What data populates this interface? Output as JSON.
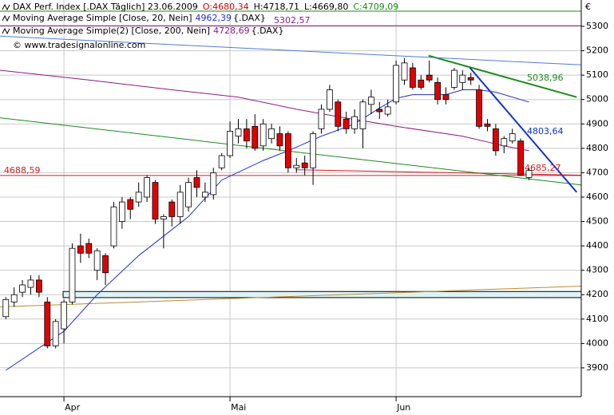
{
  "chart_data": {
    "type": "candlestick",
    "header": {
      "title": "DAX Perf. Index [.DAX  Täglich] 23.06.2009",
      "open_label": "O:4680,34",
      "high_label": "H:4718,71",
      "low_label": "L:4669,80",
      "close_label": "C:4709,09"
    },
    "currency": "€",
    "watermark": "© www.tradesignalonline.com",
    "categories": [
      null,
      null,
      null,
      null,
      null,
      null,
      null,
      "Apr",
      null,
      null,
      null,
      null,
      null,
      null,
      null,
      null,
      null,
      null,
      null,
      null,
      null,
      null,
      null,
      null,
      null,
      null,
      null,
      "Mai",
      null,
      null,
      null,
      null,
      null,
      null,
      null,
      null,
      null,
      null,
      null,
      null,
      null,
      null,
      null,
      null,
      null,
      null,
      null,
      "Jun",
      null,
      null,
      null,
      null,
      null,
      null,
      null,
      null,
      null,
      null,
      null,
      null,
      null,
      null,
      null,
      null
    ],
    "open": [
      4110,
      4170,
      4210,
      4230,
      4260,
      4170,
      3990,
      4060,
      4170,
      4400,
      4410,
      4300,
      4360,
      4400,
      4500,
      4590,
      4580,
      4600,
      4660,
      4510,
      4580,
      4520,
      4560,
      4680,
      4600,
      4610,
      4720,
      4770,
      4850,
      4880,
      4890,
      4810,
      4840,
      4860,
      4860,
      4720,
      4740,
      4720,
      4880,
      4960,
      4990,
      4920,
      4880,
      4880,
      4980,
      4960,
      4940,
      4990,
      5080,
      5130,
      5080,
      5100,
      5070,
      5020,
      5050,
      5070,
      5090,
      5040,
      4900,
      4880,
      4810,
      4830,
      4830,
      4680.34
    ],
    "high": [
      4190,
      4230,
      4260,
      4280,
      4280,
      4190,
      4100,
      4180,
      4410,
      4450,
      4430,
      4390,
      4370,
      4580,
      4600,
      4600,
      4660,
      4690,
      4670,
      4530,
      4590,
      4650,
      4680,
      4710,
      4660,
      4720,
      4780,
      4910,
      4920,
      4920,
      4940,
      4920,
      4900,
      4890,
      4870,
      4760,
      4770,
      4870,
      4980,
      5060,
      5000,
      4950,
      4960,
      5000,
      5040,
      4990,
      5000,
      5160,
      5170,
      5150,
      5100,
      5160,
      5090,
      5050,
      5130,
      5120,
      5110,
      5060,
      4920,
      4900,
      4850,
      4880,
      4840,
      4718.71
    ],
    "low": [
      4100,
      4150,
      4190,
      4200,
      4190,
      3980,
      3980,
      4000,
      4160,
      4330,
      4350,
      4260,
      4240,
      4390,
      4470,
      4510,
      4560,
      4580,
      4490,
      4390,
      4480,
      4490,
      4540,
      4600,
      4580,
      4590,
      4710,
      4760,
      4820,
      4800,
      4790,
      4790,
      4820,
      4790,
      4700,
      4700,
      4690,
      4650,
      4860,
      4950,
      4870,
      4860,
      4860,
      4800,
      4940,
      4920,
      4930,
      4980,
      5060,
      5040,
      5040,
      5070,
      4980,
      4980,
      5040,
      5040,
      5060,
      4880,
      4870,
      4770,
      4780,
      4820,
      4690,
      4669.8
    ],
    "close": [
      4180,
      4200,
      4240,
      4260,
      4210,
      3990,
      4090,
      4170,
      4390,
      4370,
      4370,
      4380,
      4290,
      4560,
      4580,
      4550,
      4620,
      4680,
      4510,
      4520,
      4520,
      4620,
      4660,
      4640,
      4620,
      4700,
      4770,
      4870,
      4880,
      4830,
      4800,
      4900,
      4880,
      4810,
      4720,
      4730,
      4720,
      4860,
      4960,
      5040,
      4890,
      4880,
      4930,
      4990,
      5010,
      4950,
      4970,
      5140,
      5150,
      5050,
      5050,
      5080,
      5000,
      5000,
      5120,
      5100,
      5080,
      4890,
      4890,
      4790,
      4840,
      4860,
      4690,
      4709.09
    ],
    "up_color": "#ffffff",
    "down_color": "#e00000",
    "series": [
      {
        "name": "Moving Average Simple [Close, 20, Nein]",
        "value_label": "4962,39",
        "symbol": "{.DAX}",
        "color": "#1f2fc8",
        "x": [
          0,
          7,
          11,
          16,
          22,
          26,
          31,
          34,
          38,
          42,
          45,
          47,
          49,
          53,
          55,
          57,
          59,
          61,
          63
        ],
        "values": [
          3890,
          4050,
          4200,
          4360,
          4520,
          4670,
          4750,
          4790,
          4850,
          4900,
          4965,
          5005,
          5020,
          5020,
          5040,
          5040,
          5030,
          5010,
          4990
        ]
      },
      {
        "name": "Moving Average Simple(2) [Close, 200, Nein]",
        "value_label": "4728,69",
        "symbol": "{.DAX}",
        "color": "#8b1a8b",
        "x": [
          -0.7,
          10,
          20,
          28,
          35,
          40,
          47,
          55,
          60,
          63
        ],
        "values": [
          5120,
          5080,
          5040,
          5010,
          4960,
          4930,
          4890,
          4850,
          4810,
          4790
        ]
      }
    ],
    "trendlines": [
      {
        "color": "#1a8a1a",
        "x": [
          -0.7,
          69.3
        ],
        "values": [
          4925,
          4650
        ]
      },
      {
        "color": "#1a8a1a",
        "x": [
          50.9,
          68.75
        ],
        "values": [
          5180,
          5010
        ],
        "label": "5038,96"
      },
      {
        "color": "#1030d0",
        "x": [
          55.9,
          68.75
        ],
        "values": [
          5130,
          4620
        ],
        "label": "4803,64"
      },
      {
        "color": "#d02020",
        "x": [
          34.9,
          69.3
        ],
        "values": [
          4712,
          4690
        ],
        "label": "4685,27"
      },
      {
        "color": "#c08a30",
        "x": [
          -0.7,
          69.3
        ],
        "values": [
          4150,
          4235
        ]
      },
      {
        "color": "#4f7bd8",
        "x": [
          -0.7,
          69.3
        ],
        "values": [
          5260,
          5142
        ]
      }
    ],
    "levels": [
      {
        "value": 5362,
        "color": "#1a8a1a"
      },
      {
        "value": 5302.57,
        "label": "5302,57",
        "color": "#8b1a8b"
      },
      {
        "value": 4688.59,
        "label": "4688,59",
        "color": "#d02020"
      }
    ],
    "zone": {
      "x": [
        6.9,
        69.3
      ],
      "values": [
        4188,
        4213
      ],
      "color": "#dff3f7"
    },
    "xlim": [
      -0.7,
      69.3
    ],
    "ylim": [
      3782,
      5408
    ],
    "yticks": [
      3900,
      4000,
      4100,
      4200,
      4300,
      4400,
      4500,
      4600,
      4700,
      4800,
      4900,
      5000,
      5100,
      5200,
      5300
    ],
    "grid": true
  }
}
